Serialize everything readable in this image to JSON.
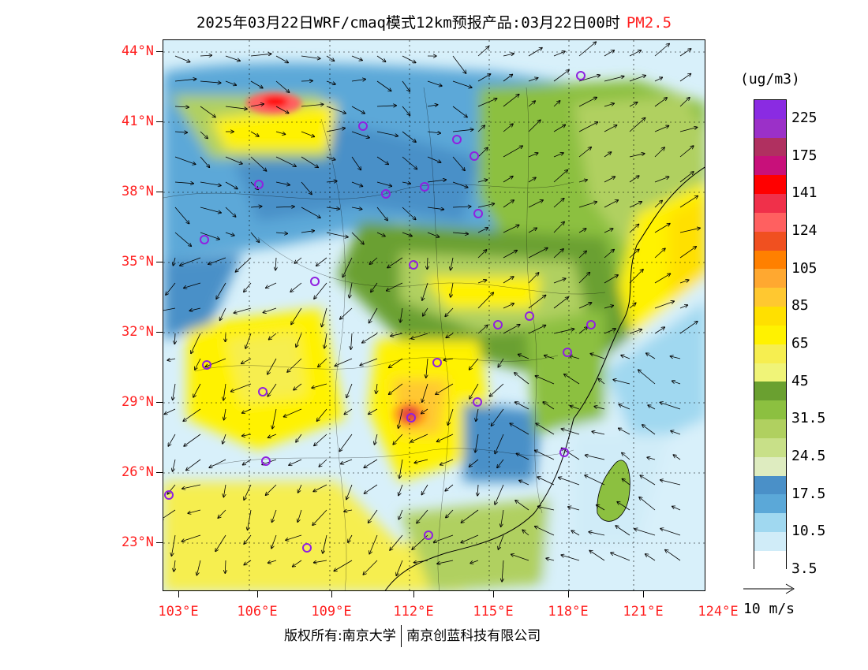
{
  "title": {
    "main": "2025年03月22日WRF/cmaq模式12km预报产品:03月22日00时",
    "pollutant": "PM2.5"
  },
  "axes": {
    "lat_labels": [
      "44°N",
      "41°N",
      "38°N",
      "35°N",
      "32°N",
      "29°N",
      "26°N",
      "23°N"
    ],
    "lon_labels": [
      "103°E",
      "106°E",
      "109°E",
      "112°E",
      "115°E",
      "118°E",
      "121°E",
      "124°E"
    ]
  },
  "legend": {
    "unit": "(ug/m3)",
    "labels": [
      "225",
      "175",
      "141",
      "124",
      "105",
      "85",
      "65",
      "45",
      "31.5",
      "24.5",
      "17.5",
      "10.5",
      "3.5"
    ],
    "colors": [
      "#8a2be2",
      "#9b30c8",
      "#b03060",
      "#c8107a",
      "#ff0000",
      "#f0304a",
      "#ff6060",
      "#f05020",
      "#ff8000",
      "#ffa830",
      "#ffc830",
      "#ffe000",
      "#fff200",
      "#f6ee50",
      "#f0f478",
      "#6aa030",
      "#8cc040",
      "#b0d060",
      "#c8e088",
      "#deecc0",
      "#4a90c8",
      "#5ba8d8",
      "#a0d8f0",
      "#d0ecf8",
      "#ffffff"
    ],
    "wind_label": "10 m/s"
  },
  "footer": {
    "left": "版权所有:南京大学",
    "right": "南京创蓝科技有限公司"
  },
  "colors": {
    "axis_label": "#ff2020",
    "marker": "#9020e0"
  }
}
